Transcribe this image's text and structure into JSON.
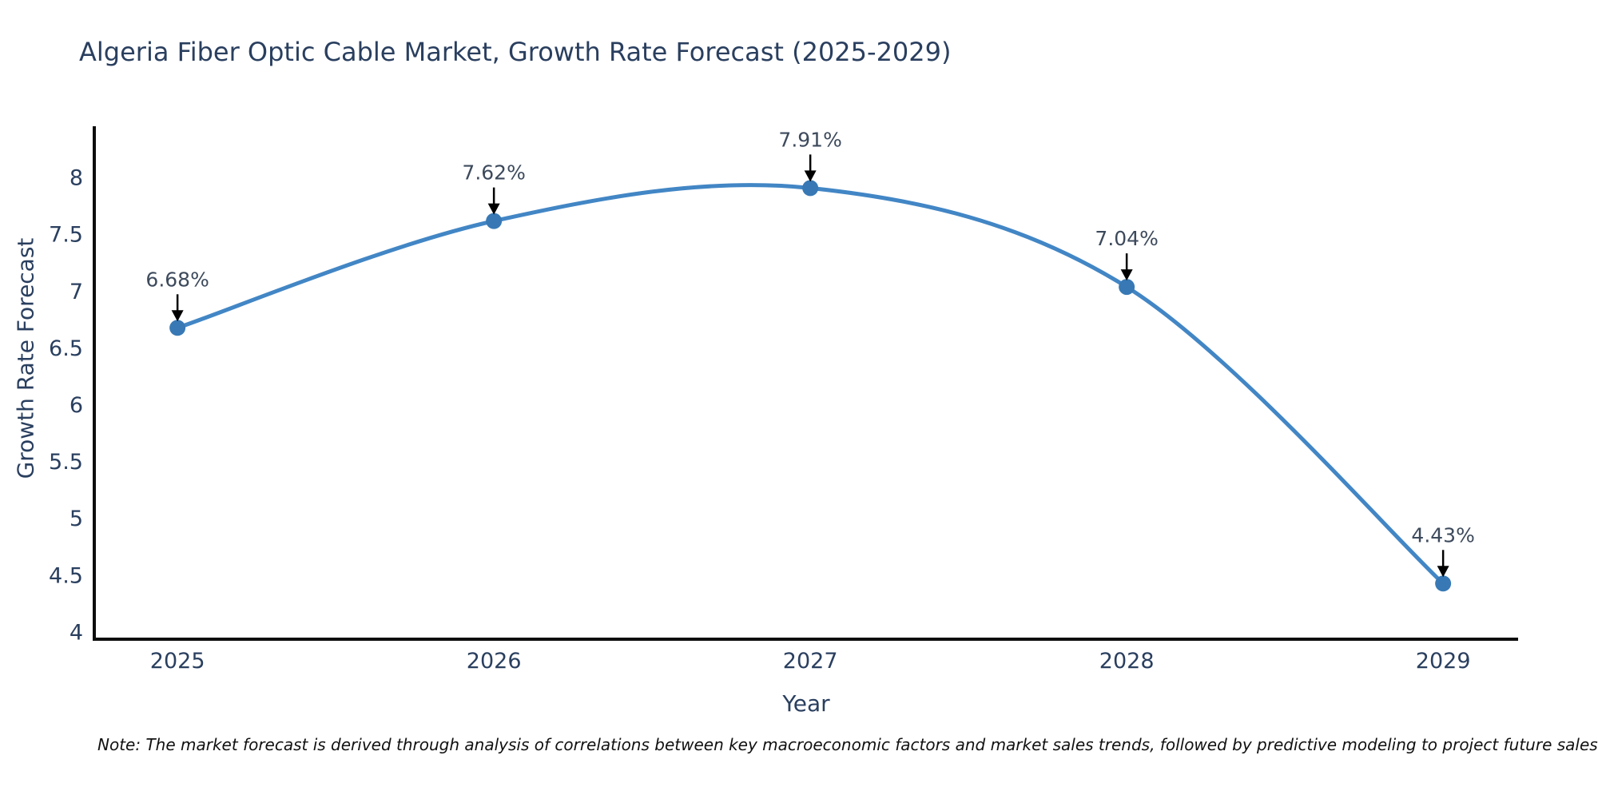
{
  "title": "Algeria Fiber Optic Cable Market, Growth Rate Forecast (2025-2029)",
  "note": "Note: The market forecast is derived through analysis of correlations between key macroeconomic factors and market sales trends, followed by predictive modeling to project future sales",
  "chart_data": {
    "type": "line",
    "title": "Algeria Fiber Optic Cable Market, Growth Rate Forecast (2025-2029)",
    "xlabel": "Year",
    "ylabel": "Growth Rate Forecast",
    "x": [
      2025,
      2026,
      2027,
      2028,
      2029
    ],
    "y": [
      6.68,
      7.62,
      7.91,
      7.04,
      4.43
    ],
    "point_labels": [
      "6.68%",
      "7.62%",
      "7.91%",
      "7.04%",
      "4.43%"
    ],
    "xticks": [
      "2025",
      "2026",
      "2027",
      "2028",
      "2029"
    ],
    "xtick_values": [
      2025,
      2026,
      2027,
      2028,
      2029
    ],
    "yticks": [
      "4",
      "4.5",
      "5",
      "5.5",
      "6",
      "6.5",
      "7",
      "7.5",
      "8"
    ],
    "ytick_values": [
      4,
      4.5,
      5,
      5.5,
      6,
      6.5,
      7,
      7.5,
      8
    ],
    "xlim": [
      2024.737,
      2029.237
    ],
    "ylim": [
      3.94,
      8.44
    ],
    "line_shape": "spline",
    "grid": false,
    "legend": "none",
    "colors": {
      "line": "#4286c5",
      "marker": "#3879b5",
      "arrow": "#000000",
      "axis_line": "#0d0d0d",
      "tick_text": "#2a3f5f",
      "annotation_text": "#3d4a5c"
    }
  }
}
